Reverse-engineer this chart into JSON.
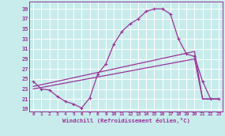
{
  "xlabel": "Windchill (Refroidissement éolien,°C)",
  "bg_color": "#c8ecec",
  "line_color": "#993399",
  "grid_color": "#ffffff",
  "x_ticks": [
    0,
    1,
    2,
    3,
    4,
    5,
    6,
    7,
    8,
    9,
    10,
    11,
    12,
    13,
    14,
    15,
    16,
    17,
    18,
    19,
    20,
    21,
    22,
    23
  ],
  "y_ticks": [
    19,
    21,
    23,
    25,
    27,
    29,
    31,
    33,
    35,
    37,
    39
  ],
  "ylim": [
    18.5,
    40.5
  ],
  "xlim": [
    -0.5,
    23.5
  ],
  "curve1_x": [
    0,
    1,
    2,
    3,
    4,
    5,
    6,
    7,
    8,
    9,
    10,
    11,
    12,
    13,
    14,
    15,
    16,
    17,
    18,
    19,
    20,
    21,
    22,
    23
  ],
  "curve1_y": [
    24.5,
    23.0,
    22.8,
    21.5,
    20.5,
    20.0,
    19.2,
    21.2,
    26.0,
    28.0,
    32.0,
    34.5,
    36.0,
    37.0,
    38.5,
    39.0,
    39.0,
    38.0,
    33.0,
    30.0,
    29.5,
    24.5,
    21.0,
    21.0
  ],
  "curve2_x": [
    0,
    1,
    2,
    3,
    4,
    5,
    6,
    7,
    8,
    9,
    10,
    11,
    12,
    13,
    14,
    15,
    16,
    17,
    18,
    19,
    20,
    21,
    22,
    23
  ],
  "curve2_y": [
    23.0,
    23.3,
    23.6,
    23.9,
    24.2,
    24.5,
    24.8,
    25.1,
    25.4,
    25.7,
    26.0,
    26.3,
    26.6,
    26.9,
    27.2,
    27.5,
    27.8,
    28.1,
    28.4,
    28.7,
    29.0,
    21.0,
    21.0,
    21.0
  ],
  "curve3_x": [
    0,
    1,
    2,
    3,
    4,
    5,
    6,
    7,
    8,
    9,
    10,
    11,
    12,
    13,
    14,
    15,
    16,
    17,
    18,
    19,
    20,
    21,
    22,
    23
  ],
  "curve3_y": [
    23.5,
    23.85,
    24.2,
    24.55,
    24.9,
    25.25,
    25.6,
    25.95,
    26.3,
    26.65,
    27.0,
    27.35,
    27.7,
    28.05,
    28.4,
    28.75,
    29.1,
    29.45,
    29.8,
    30.15,
    30.5,
    21.0,
    21.0,
    21.0
  ]
}
